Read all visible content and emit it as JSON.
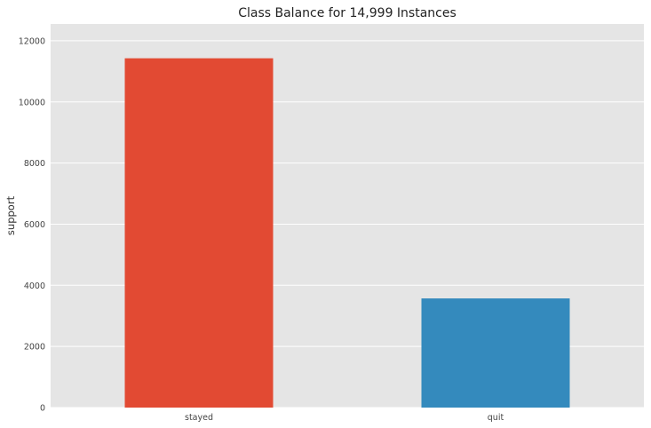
{
  "chart_data": {
    "type": "bar",
    "title": "Class Balance for 14,999 Instances",
    "xlabel": "",
    "ylabel": "support",
    "categories": [
      "stayed",
      "quit"
    ],
    "values": [
      11428,
      3571
    ],
    "colors": [
      "#E24A33",
      "#348ABD"
    ],
    "ylim": [
      0,
      12550
    ],
    "yticks": [
      0,
      2000,
      4000,
      6000,
      8000,
      10000,
      12000
    ],
    "grid": true,
    "legend": "none",
    "background": "#E5E5E5",
    "gridColor": "#FFFFFF"
  }
}
